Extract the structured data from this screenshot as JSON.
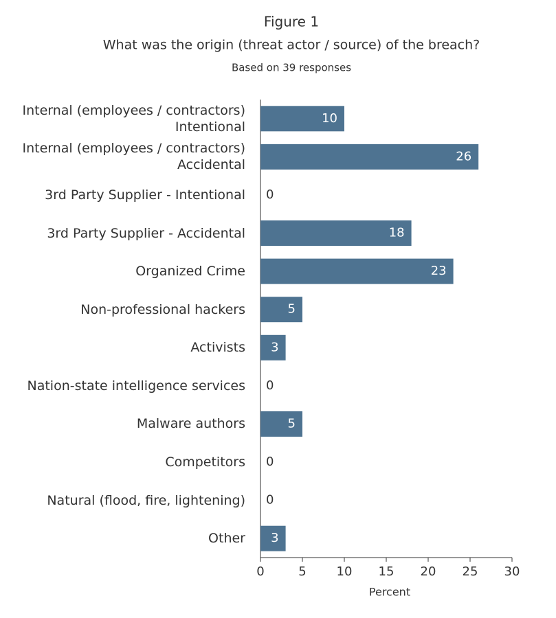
{
  "chart_data": {
    "type": "hbar",
    "title": "Figure 1",
    "subtitle": "What was the origin (threat actor / source) of the breach?",
    "note": "Based on 39 responses",
    "x_label": "Percent",
    "categories": [
      "Internal (employees / contractors)\nIntentional",
      "Internal (employees / contractors)\nAccidental",
      "3rd Party Supplier - Intentional",
      "3rd Party Supplier - Accidental",
      "Organized Crime",
      "Non-professional hackers",
      "Activists",
      "Nation-state intelligence services",
      "Malware authors",
      "Competitors",
      "Natural (flood, fire, lightening)",
      "Other"
    ],
    "values": [
      10,
      26,
      0,
      18,
      23,
      5,
      3,
      0,
      5,
      0,
      0,
      3
    ],
    "color": "#4e7391",
    "xlim": [
      0,
      30
    ],
    "xticks": [
      0,
      5,
      10,
      15,
      20,
      25,
      30
    ]
  }
}
